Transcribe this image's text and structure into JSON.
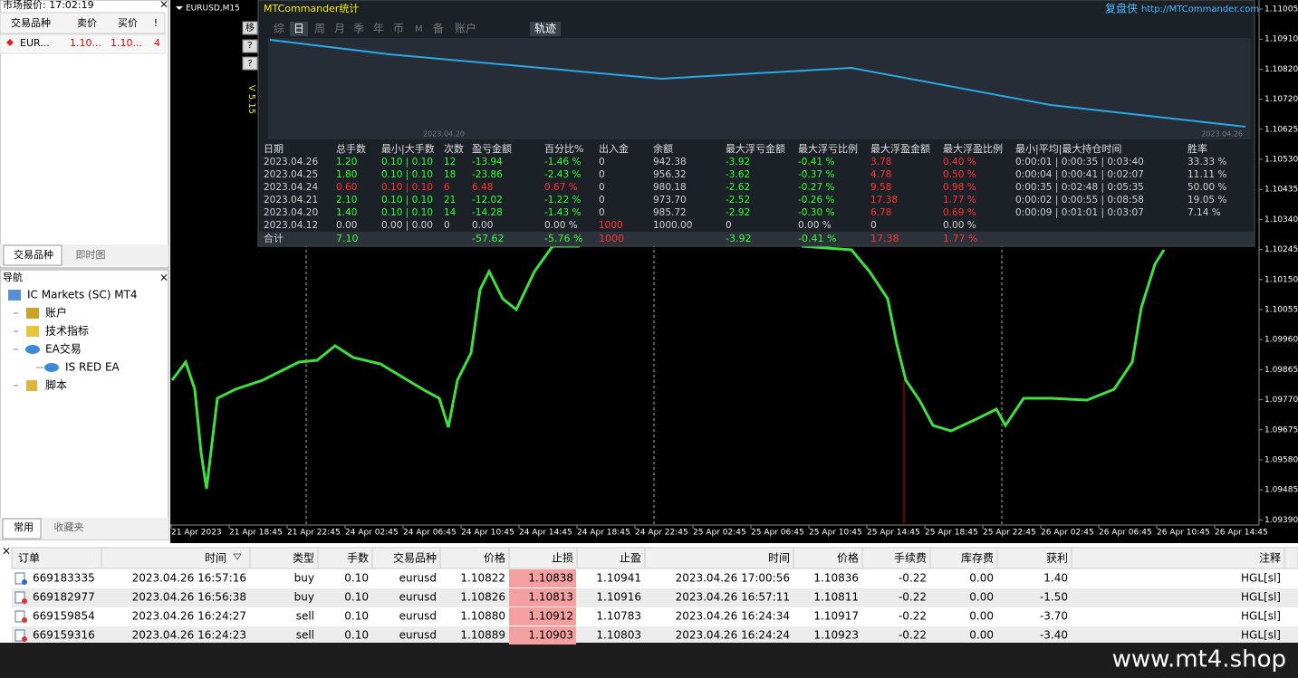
{
  "market_watch": {
    "title": "市场报价: 17:02:19",
    "headers": [
      "交易品种",
      "卖价",
      "买价",
      "!"
    ],
    "rows": [
      [
        "EUR...",
        "1.10...",
        "1.10...",
        "4"
      ]
    ],
    "tabs": [
      "交易品种",
      "即时图"
    ]
  },
  "navigator": {
    "title": "导航",
    "items": [
      "IC Markets (SC) MT4",
      "账户",
      "技术指标",
      "EA交易",
      "IS RED EA",
      "脚本"
    ],
    "tabs": [
      "常用",
      "收藏夹"
    ]
  },
  "chart": {
    "symbol": "EURUSD,M15",
    "version": "V 5.15",
    "buttons": [
      "移",
      "?",
      "?",
      "√"
    ],
    "price_labels": [
      "1.11005",
      "1.10910",
      "1.10820",
      "1.10720",
      "1.10625",
      "1.10530",
      "1.10435",
      "1.10340",
      "1.10245",
      "1.10150",
      "1.10055",
      "1.09960",
      "1.09865",
      "1.09770",
      "1.09675",
      "1.09580",
      "1.09485",
      "1.09390"
    ],
    "time_labels": [
      "21 Apr 2023",
      "21 Apr 18:45",
      "21 Apr 22:45",
      "24 Apr 02:45",
      "24 Apr 06:45",
      "24 Apr 10:45",
      "24 Apr 14:45",
      "24 Apr 18:45",
      "24 Apr 22:45",
      "25 Apr 02:45",
      "25 Apr 06:45",
      "25 Apr 10:45",
      "25 Apr 14:45",
      "25 Apr 18:45",
      "25 Apr 22:45",
      "26 Apr 02:45",
      "26 Apr 06:45",
      "26 Apr 10:45",
      "26 Apr 14:45"
    ]
  },
  "stats": {
    "title": "MTCommander统计",
    "brand": "复盘侠",
    "url": "http://MTCommander.com",
    "tabs": [
      "综",
      "日",
      "周",
      "月",
      "季",
      "年",
      "币",
      "M",
      "备",
      "账户"
    ],
    "track_tab": "轨迹",
    "curve_dates": [
      "2023.04.20",
      "2023.04.26"
    ],
    "headers": [
      "日期",
      "总手数",
      "最小|大手数",
      "次数",
      "盈亏金额",
      "百分比%",
      "出入金",
      "余额",
      "最大浮亏金额",
      "最大浮亏比例",
      "最大浮盈金额",
      "最大浮盈比例",
      "最小|平均|最大持仓时间",
      "胜率"
    ],
    "rows": [
      [
        "2023.04.26",
        "1.20",
        "0.10 | 0.10",
        "12",
        "-13.94",
        "-1.46 %",
        "0",
        "942.38",
        "-3.92",
        "-0.41 %",
        "3.78",
        "0.40 %",
        "0:00:01 | 0:00:35 | 0:03:40",
        "33.33 %"
      ],
      [
        "2023.04.25",
        "1.80",
        "0.10 | 0.10",
        "18",
        "-23.86",
        "-2.43 %",
        "0",
        "956.32",
        "-3.62",
        "-0.37 %",
        "4.78",
        "0.50 %",
        "0:00:04 | 0:00:41 | 0:02:07",
        "11.11 %"
      ],
      [
        "2023.04.24",
        "0.60",
        "0.10 | 0.10",
        "6",
        "6.48",
        "0.67 %",
        "0",
        "980.18",
        "-2.62",
        "-0.27 %",
        "9.58",
        "0.98 %",
        "0:00:35 | 0:02:48 | 0:05:35",
        "50.00 %"
      ],
      [
        "2023.04.21",
        "2.10",
        "0.10 | 0.10",
        "21",
        "-12.02",
        "-1.22 %",
        "0",
        "973.70",
        "-2.52",
        "-0.26 %",
        "17.38",
        "1.77 %",
        "0:00:02 | 0:00:55 | 0:08:58",
        "19.05 %"
      ],
      [
        "2023.04.20",
        "1.40",
        "0.10 | 0.10",
        "14",
        "-14.28",
        "-1.43 %",
        "0",
        "985.72",
        "-2.92",
        "-0.30 %",
        "6.78",
        "0.69 %",
        "0:00:09 | 0:01:01 | 0:03:07",
        "7.14 %"
      ],
      [
        "2023.04.12",
        "0.00",
        "0.00 | 0.00",
        "0",
        "0.00",
        "0.00 %",
        "1000",
        "1000.00",
        "0",
        "0.00 %",
        "0",
        "0.00 %"
      ]
    ],
    "total": [
      "合计",
      "7.10",
      null,
      null,
      "-57.62",
      "-5.76 %",
      "1000",
      null,
      "-3.92",
      "-0.41 %",
      "17.38",
      "1.77 %"
    ]
  },
  "orders": {
    "headers": [
      "订单",
      "时间",
      "类型",
      "手数",
      "交易品种",
      "价格",
      "止损",
      "止盈",
      "时间",
      "价格",
      "手续费",
      "库存费",
      "获利",
      "注释"
    ],
    "rows": [
      [
        "669183335",
        "2023.04.26 16:57:16",
        "buy",
        "0.10",
        "eurusd",
        "1.10822",
        "1.10838",
        "1.10941",
        "2023.04.26 17:00:56",
        "1.10836",
        "-0.22",
        "0.00",
        "1.40",
        "HGL[sl]"
      ],
      [
        "669182977",
        "2023.04.26 16:56:38",
        "buy",
        "0.10",
        "eurusd",
        "1.10826",
        "1.10813",
        "1.10916",
        "2023.04.26 16:57:11",
        "1.10811",
        "-0.22",
        "0.00",
        "-1.50",
        "HGL[sl]"
      ],
      [
        "669159854",
        "2023.04.26 16:24:27",
        "sell",
        "0.10",
        "eurusd",
        "1.10880",
        "1.10912",
        "1.10783",
        "2023.04.26 16:24:34",
        "1.10917",
        "-0.22",
        "0.00",
        "-3.70",
        "HGL[sl]"
      ],
      [
        "669159316",
        "2023.04.26 16:24:23",
        "sell",
        "0.10",
        "eurusd",
        "1.10889",
        "1.10903",
        "1.10803",
        "2023.04.26 16:24:24",
        "1.10923",
        "-0.22",
        "0.00",
        "-3.40",
        "HGL[sl]"
      ]
    ]
  },
  "watermark": "www.mt4.shop"
}
